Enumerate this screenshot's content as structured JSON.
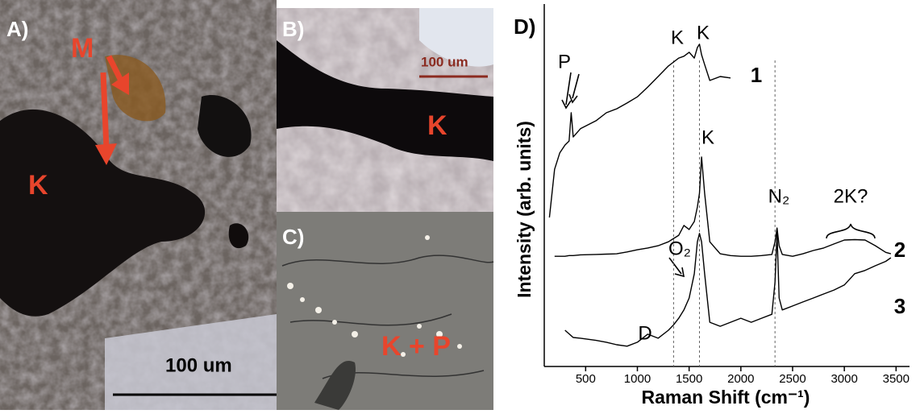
{
  "panels": {
    "a": {
      "label": "A)",
      "marker": "M",
      "mineral": "K",
      "scale": "100 um"
    },
    "b": {
      "label": "B)",
      "scale": "100 um",
      "mineral": "K"
    },
    "c": {
      "label": "C)",
      "mineral": "K + P"
    }
  },
  "chart_data": {
    "type": "line",
    "panel_label": "D)",
    "xlabel": "Raman Shift (cm⁻¹)",
    "ylabel": "Intensity (arb. units)",
    "xlim": [
      100,
      3630
    ],
    "ylim": [
      0,
      100
    ],
    "xticks": [
      500,
      1000,
      1500,
      2000,
      2500,
      3000,
      3500
    ],
    "vlines": [
      1350,
      1600,
      2330
    ],
    "annotations": [
      "K",
      "K",
      "P",
      "K",
      "N₂",
      "2K?",
      "O₂",
      "D"
    ],
    "x": [
      150,
      200,
      250,
      300,
      340,
      360,
      380,
      450,
      600,
      700,
      800,
      900,
      1000,
      1100,
      1200,
      1300,
      1350,
      1400,
      1450,
      1500,
      1550,
      1580,
      1600,
      1620,
      1650,
      1700,
      1800,
      1900,
      2000,
      2100,
      2200,
      2300,
      2330,
      2350,
      2370,
      2400,
      2500,
      2600,
      2700,
      2800,
      2900,
      3000,
      3100,
      3200,
      3300,
      3400,
      3450
    ],
    "series": [
      {
        "name": "1",
        "color": "#000000",
        "values": [
          41.1,
          54.4,
          58.9,
          61.1,
          62.2,
          70,
          63.3,
          65.6,
          67.8,
          70,
          71.1,
          72.7,
          74.4,
          77.1,
          80,
          82.9,
          84,
          85.1,
          85.6,
          86.7,
          85.1,
          88,
          88.9,
          86,
          83.3,
          78.9,
          80,
          79.6,
          null,
          null,
          null,
          null,
          null,
          null,
          null,
          null,
          null,
          null,
          null,
          null,
          null,
          null,
          null,
          null,
          null,
          null,
          null
        ]
      },
      {
        "name": "2",
        "color": "#000000",
        "values": [
          null,
          30.4,
          30.4,
          30.4,
          30.6,
          30.6,
          30.6,
          30.8,
          30.9,
          31,
          31.1,
          31.6,
          32.2,
          32.7,
          33.3,
          34.4,
          35.3,
          36.2,
          38.9,
          37.8,
          40,
          44,
          47.8,
          57.8,
          47.8,
          34.4,
          31.1,
          30.6,
          30.4,
          30.4,
          30.6,
          30.9,
          34.4,
          38.2,
          33.3,
          30.9,
          30.4,
          31.1,
          32,
          32.7,
          33.8,
          34.9,
          35,
          34.9,
          33.3,
          31.5,
          31.1
        ]
      },
      {
        "name": "3",
        "color": "#000000",
        "values": [
          null,
          null,
          null,
          10,
          9,
          8.5,
          8,
          7.8,
          7.2,
          6.7,
          6,
          5.6,
          6.7,
          8.9,
          7.8,
          10,
          11.5,
          13.3,
          15.6,
          18.9,
          25.6,
          34.4,
          36.7,
          34.4,
          25.6,
          12.2,
          11.1,
          12.2,
          13.3,
          12.2,
          13.3,
          14.4,
          23.3,
          36.7,
          18.9,
          15.6,
          16.7,
          17.8,
          18.9,
          20,
          21.1,
          22.5,
          25.6,
          26.5,
          27.8,
          29,
          30
        ]
      }
    ]
  }
}
